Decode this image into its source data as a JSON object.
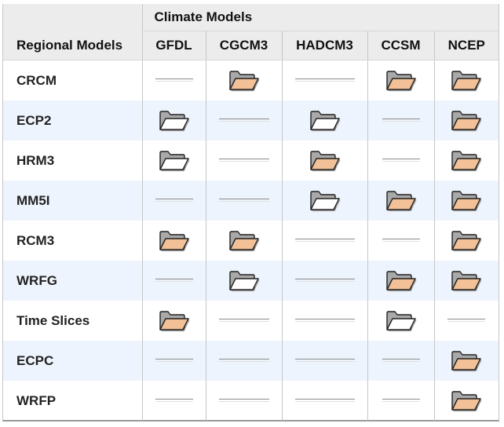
{
  "table": {
    "group_header": "Climate Models",
    "row_header": "Regional Models",
    "columns": [
      "GFDL",
      "CGCM3",
      "HADCM3",
      "CCSM",
      "NCEP"
    ],
    "rows": [
      {
        "label": "CRCM",
        "cells": [
          "none",
          "orange",
          "none",
          "orange",
          "orange"
        ]
      },
      {
        "label": "ECP2",
        "cells": [
          "white",
          "none",
          "white",
          "none",
          "orange"
        ]
      },
      {
        "label": "HRM3",
        "cells": [
          "white",
          "none",
          "orange",
          "none",
          "orange"
        ]
      },
      {
        "label": "MM5I",
        "cells": [
          "none",
          "none",
          "white",
          "orange",
          "orange"
        ]
      },
      {
        "label": "RCM3",
        "cells": [
          "orange",
          "orange",
          "none",
          "none",
          "orange"
        ]
      },
      {
        "label": "WRFG",
        "cells": [
          "none",
          "white",
          "none",
          "orange",
          "orange"
        ]
      },
      {
        "label": "Time Slices",
        "cells": [
          "orange",
          "none",
          "none",
          "white",
          "none"
        ]
      },
      {
        "label": "ECPC",
        "cells": [
          "none",
          "none",
          "none",
          "none",
          "orange"
        ]
      },
      {
        "label": "WRFP",
        "cells": [
          "none",
          "none",
          "none",
          "none",
          "orange"
        ]
      }
    ]
  },
  "icons": {
    "orange": "folder-open-orange-icon",
    "white": "folder-open-white-icon"
  },
  "colors": {
    "folder_orange": "#f3c197",
    "folder_white": "#ffffff",
    "folder_back": "#a9a9a9",
    "stripe": "#eef4fd",
    "header_bg": "#ececec"
  }
}
